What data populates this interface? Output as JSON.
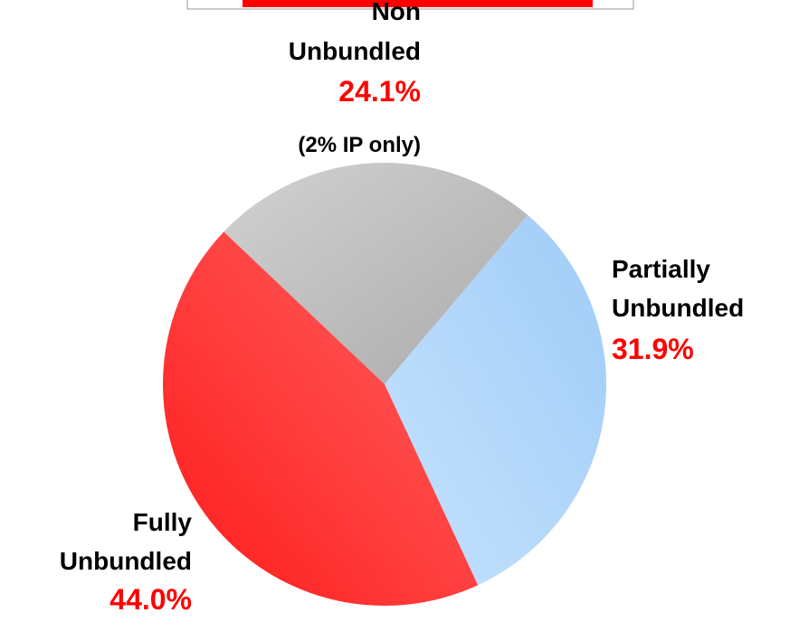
{
  "chart_data": {
    "type": "pie",
    "categories": [
      "Non Unbundled",
      "Partially Unbundled",
      "Fully Unbundled"
    ],
    "values": [
      24.1,
      31.9,
      44.0
    ],
    "value_labels": [
      "24.1%",
      "31.9%",
      "44.0%"
    ],
    "colors": [
      [
        "#d2d2d2",
        "#aaaaaa"
      ],
      [
        "#c6e2fd",
        "#9fccf7"
      ],
      [
        "#ff1a1a",
        "#ff6464"
      ]
    ],
    "annotations": [
      "(2% IP only)"
    ]
  }
}
